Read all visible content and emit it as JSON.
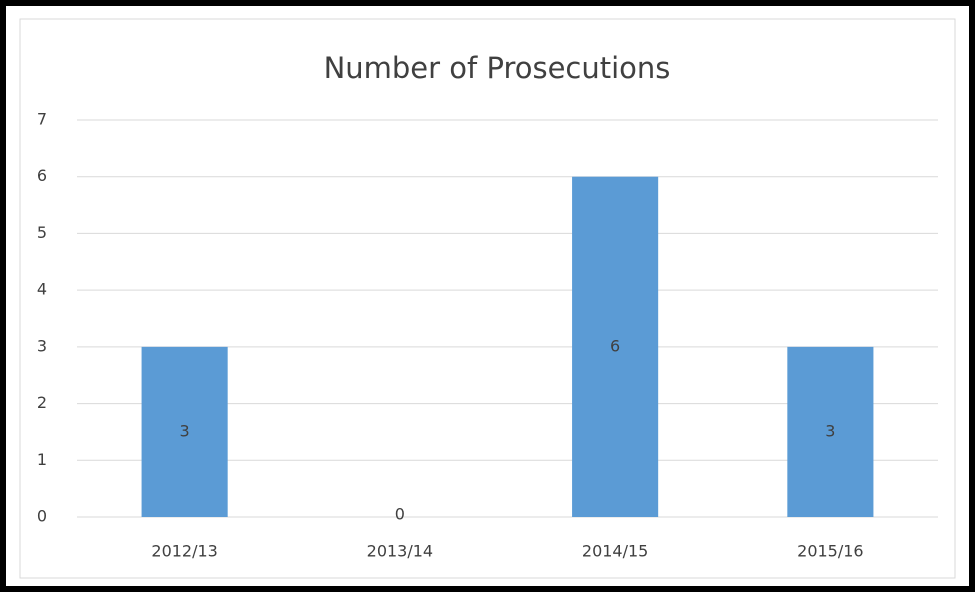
{
  "chart_data": {
    "type": "bar",
    "title": "Number of Prosecutions",
    "categories": [
      "2012/13",
      "2013/14",
      "2014/15",
      "2015/16"
    ],
    "values": [
      3,
      0,
      6,
      3
    ],
    "color": "#5b9bd5",
    "ylim": [
      0,
      7
    ],
    "yticks": [
      0,
      1,
      2,
      3,
      4,
      5,
      6,
      7
    ],
    "grid": true
  }
}
